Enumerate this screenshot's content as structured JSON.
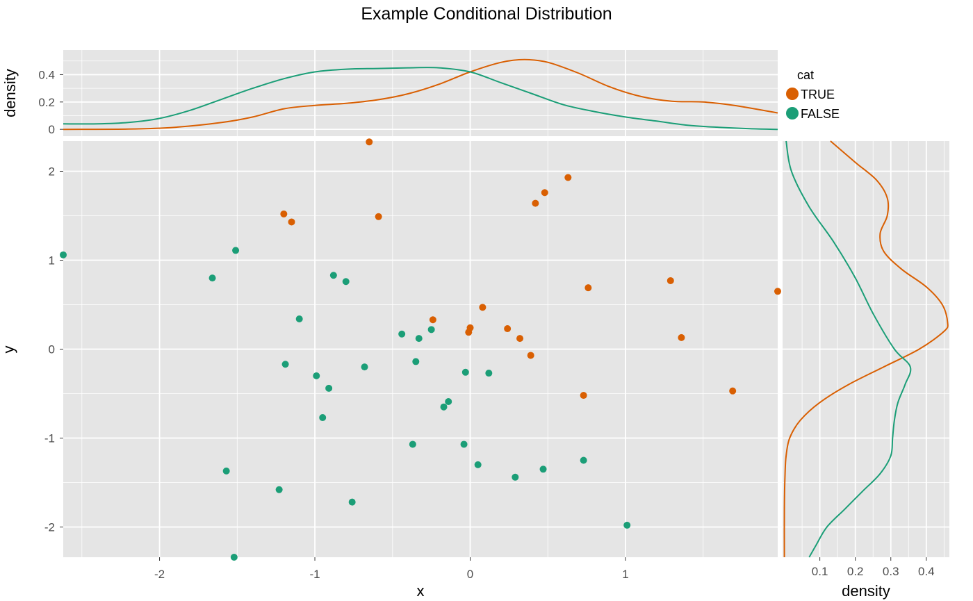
{
  "chart_data": {
    "type": "scatter",
    "title": "Example Conditional Distribution",
    "xlabel": "x",
    "ylabel": "y",
    "xlim": [
      -2.62,
      1.98
    ],
    "ylim": [
      -2.34,
      2.34
    ],
    "x_ticks": [
      -2,
      -1,
      0,
      1
    ],
    "x_tick_labels": [
      "-2",
      "-1",
      "0",
      "1"
    ],
    "y_ticks": [
      -2,
      -1,
      0,
      1,
      2
    ],
    "y_tick_labels": [
      "-2",
      "-1",
      "0",
      "1",
      "2"
    ],
    "legend": {
      "title": "cat",
      "position": "top-right",
      "entries": [
        {
          "label": "TRUE",
          "color": "#D95F02"
        },
        {
          "label": "FALSE",
          "color": "#1B9E77"
        }
      ]
    },
    "series": [
      {
        "name": "TRUE",
        "color": "#D95F02",
        "points": [
          [
            -0.65,
            2.33
          ],
          [
            0.63,
            1.93
          ],
          [
            0.48,
            1.76
          ],
          [
            0.42,
            1.64
          ],
          [
            -1.2,
            1.52
          ],
          [
            -1.15,
            1.43
          ],
          [
            -0.59,
            1.49
          ],
          [
            0.76,
            0.69
          ],
          [
            1.29,
            0.77
          ],
          [
            1.98,
            0.65
          ],
          [
            0.08,
            0.47
          ],
          [
            -0.24,
            0.33
          ],
          [
            0.0,
            0.24
          ],
          [
            -0.01,
            0.19
          ],
          [
            0.24,
            0.23
          ],
          [
            0.32,
            0.12
          ],
          [
            1.36,
            0.13
          ],
          [
            0.39,
            -0.07
          ],
          [
            0.73,
            -0.52
          ],
          [
            1.69,
            -0.47
          ]
        ]
      },
      {
        "name": "FALSE",
        "color": "#1B9E77",
        "points": [
          [
            -2.62,
            1.06
          ],
          [
            -1.51,
            1.11
          ],
          [
            -1.66,
            0.8
          ],
          [
            -0.88,
            0.83
          ],
          [
            -0.8,
            0.76
          ],
          [
            -1.1,
            0.34
          ],
          [
            -0.44,
            0.17
          ],
          [
            -0.33,
            0.12
          ],
          [
            -0.25,
            0.22
          ],
          [
            -1.19,
            -0.17
          ],
          [
            -0.68,
            -0.2
          ],
          [
            -0.35,
            -0.14
          ],
          [
            -0.99,
            -0.3
          ],
          [
            -0.91,
            -0.44
          ],
          [
            -0.03,
            -0.26
          ],
          [
            0.12,
            -0.27
          ],
          [
            -0.14,
            -0.59
          ],
          [
            -0.17,
            -0.65
          ],
          [
            -0.95,
            -0.77
          ],
          [
            -0.37,
            -1.07
          ],
          [
            -0.04,
            -1.07
          ],
          [
            0.05,
            -1.3
          ],
          [
            0.29,
            -1.44
          ],
          [
            0.47,
            -1.35
          ],
          [
            0.73,
            -1.25
          ],
          [
            -1.57,
            -1.37
          ],
          [
            -1.23,
            -1.58
          ],
          [
            -0.76,
            -1.72
          ],
          [
            1.01,
            -1.98
          ],
          [
            -1.52,
            -2.34
          ]
        ]
      }
    ],
    "x_density": {
      "ylabel": "density",
      "ylim": [
        -0.05,
        0.58
      ],
      "y_ticks": [
        0,
        0.2,
        0.4
      ],
      "y_tick_labels": [
        "0",
        "0.2",
        "0.4"
      ],
      "series": [
        {
          "name": "TRUE",
          "color": "#D95F02",
          "x": [
            -2.62,
            -2.2,
            -1.9,
            -1.6,
            -1.4,
            -1.2,
            -1.0,
            -0.8,
            -0.6,
            -0.4,
            -0.2,
            0.0,
            0.2,
            0.35,
            0.5,
            0.7,
            0.9,
            1.1,
            1.3,
            1.5,
            1.7,
            1.98
          ],
          "y": [
            0.0,
            0.002,
            0.015,
            0.05,
            0.09,
            0.15,
            0.175,
            0.19,
            0.215,
            0.26,
            0.33,
            0.42,
            0.49,
            0.51,
            0.49,
            0.41,
            0.31,
            0.24,
            0.205,
            0.2,
            0.175,
            0.12
          ]
        },
        {
          "name": "FALSE",
          "color": "#1B9E77",
          "x": [
            -2.62,
            -2.4,
            -2.2,
            -2.0,
            -1.8,
            -1.6,
            -1.4,
            -1.2,
            -1.0,
            -0.8,
            -0.6,
            -0.4,
            -0.2,
            0.0,
            0.2,
            0.4,
            0.6,
            0.8,
            1.0,
            1.2,
            1.4,
            1.6,
            1.8,
            1.98
          ],
          "y": [
            0.04,
            0.04,
            0.05,
            0.08,
            0.14,
            0.22,
            0.3,
            0.37,
            0.42,
            0.44,
            0.445,
            0.45,
            0.45,
            0.42,
            0.34,
            0.26,
            0.18,
            0.13,
            0.09,
            0.06,
            0.03,
            0.015,
            0.005,
            0.0
          ]
        }
      ]
    },
    "y_density": {
      "xlabel": "density",
      "xlim": [
        -0.005,
        0.465
      ],
      "x_ticks": [
        0.1,
        0.2,
        0.3,
        0.4
      ],
      "x_tick_labels": [
        "0.1",
        "0.2",
        "0.3",
        "0.4"
      ],
      "series": [
        {
          "name": "TRUE",
          "color": "#D95F02",
          "y": [
            2.34,
            2.1,
            1.9,
            1.7,
            1.5,
            1.3,
            1.1,
            0.9,
            0.7,
            0.5,
            0.3,
            0.2,
            0.0,
            -0.2,
            -0.4,
            -0.6,
            -0.8,
            -1.0,
            -1.2,
            -1.4,
            -1.8,
            -2.34
          ],
          "x": [
            0.13,
            0.2,
            0.26,
            0.29,
            0.29,
            0.27,
            0.28,
            0.33,
            0.4,
            0.445,
            0.46,
            0.45,
            0.38,
            0.28,
            0.18,
            0.1,
            0.045,
            0.015,
            0.005,
            0.002,
            0.0,
            0.0
          ]
        },
        {
          "name": "FALSE",
          "color": "#1B9E77",
          "y": [
            2.34,
            2.0,
            1.6,
            1.2,
            0.8,
            0.4,
            0.0,
            -0.2,
            -0.4,
            -0.6,
            -0.8,
            -1.0,
            -1.2,
            -1.4,
            -1.6,
            -1.8,
            -2.0,
            -2.2,
            -2.34
          ],
          "x": [
            0.005,
            0.02,
            0.07,
            0.14,
            0.2,
            0.25,
            0.31,
            0.355,
            0.34,
            0.32,
            0.31,
            0.305,
            0.3,
            0.27,
            0.22,
            0.17,
            0.12,
            0.09,
            0.07
          ]
        }
      ]
    }
  }
}
